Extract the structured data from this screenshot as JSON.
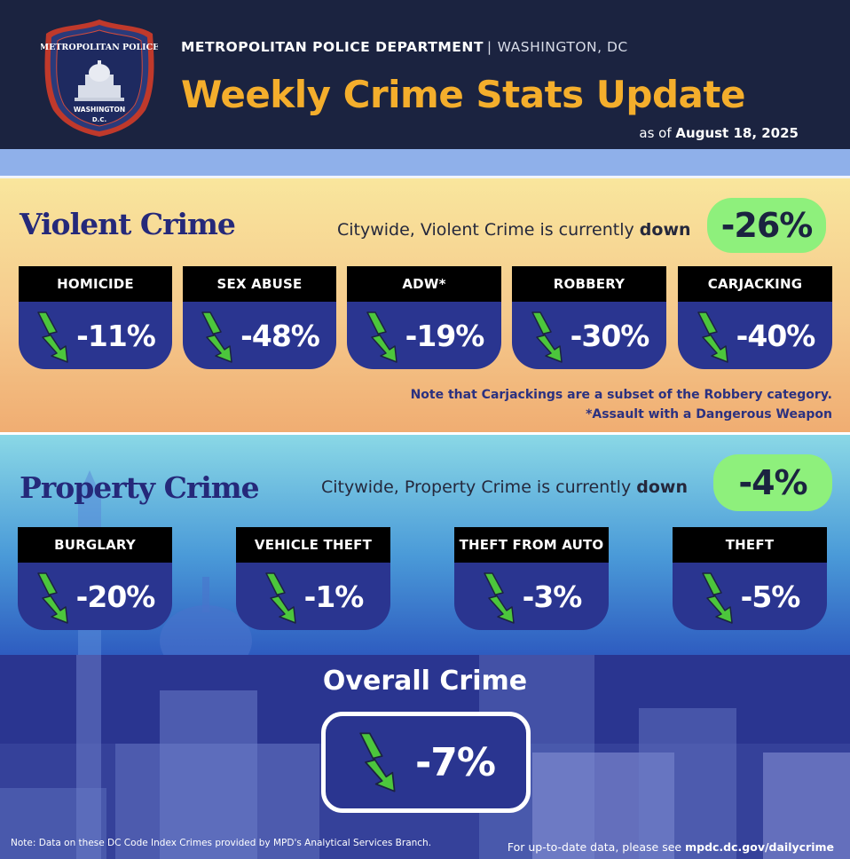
{
  "header": {
    "department": "METROPOLITAN POLICE DEPARTMENT",
    "separator": "|",
    "city": "WASHINGTON, DC",
    "title": "Weekly Crime Stats Update",
    "as_of_prefix": "as of",
    "as_of_date": "August 18, 2025",
    "badge": {
      "top_text": "METROPOLITAN POLICE",
      "middle_text": "WASHINGTON",
      "bottom_text": "D.C."
    }
  },
  "violent": {
    "title": "Violent Crime",
    "summary_prefix": "Citywide, Violent Crime is currently",
    "summary_bold": "down",
    "total": "-26%",
    "categories": [
      {
        "label": "HOMICIDE",
        "value": "-11%"
      },
      {
        "label": "SEX ABUSE",
        "value": "-48%"
      },
      {
        "label": "ADW*",
        "value": "-19%"
      },
      {
        "label": "ROBBERY",
        "value": "-30%"
      },
      {
        "label": "CARJACKING",
        "value": "-40%"
      }
    ],
    "note_1": "Note that Carjackings are a subset of the Robbery category.",
    "note_2": "*Assault with a Dangerous Weapon"
  },
  "property": {
    "title": "Property Crime",
    "summary_prefix": "Citywide, Property Crime is currently",
    "summary_bold": "down",
    "total": "-4%",
    "categories": [
      {
        "label": "BURGLARY",
        "value": "-20%"
      },
      {
        "label": "VEHICLE THEFT",
        "value": "-1%"
      },
      {
        "label": "THEFT FROM AUTO",
        "value": "-3%"
      },
      {
        "label": "THEFT",
        "value": "-5%"
      }
    ]
  },
  "overall": {
    "title": "Overall Crime",
    "value": "-7%"
  },
  "footer": {
    "note": "Note: Data on these DC Code Index Crimes provided by MPD's Analytical Services Branch.",
    "link_prefix": "For up-to-date data, please see",
    "link": "mpdc.dc.gov/dailycrime"
  },
  "colors": {
    "navy": "#1b2340",
    "title_gold": "#f4ae2c",
    "card_blue": "#2a3590",
    "pill_green": "#8ef07c",
    "arrow_green": "#4cc63c",
    "section_title": "#25297a"
  },
  "icons": {
    "down_trend": "down-trend-arrow-icon",
    "badge": "police-badge-logo"
  }
}
